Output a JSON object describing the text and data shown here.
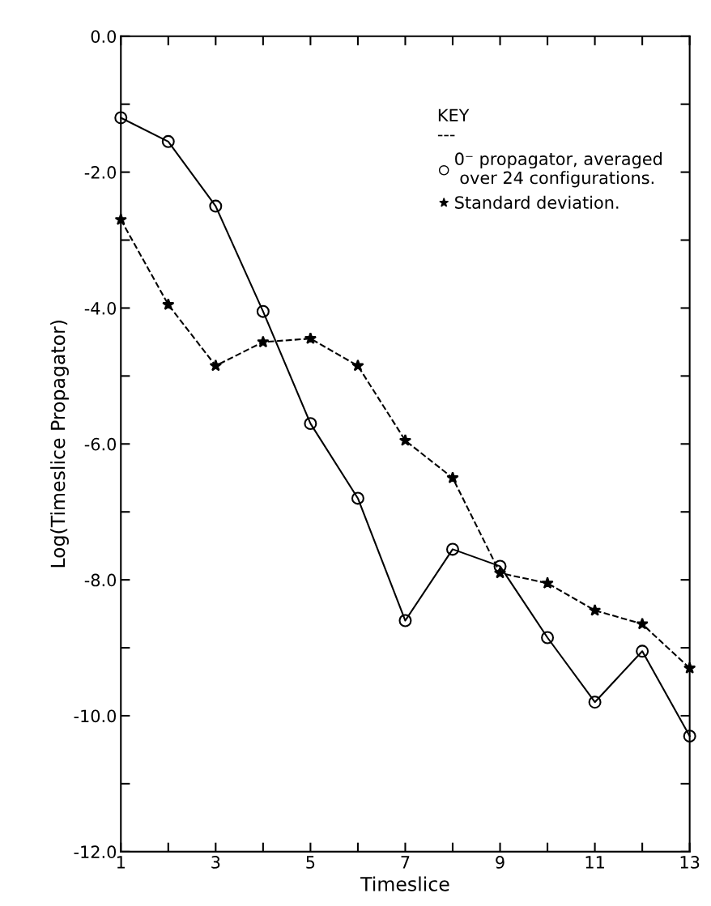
{
  "chart_data": {
    "type": "line",
    "xlabel": "Timeslice",
    "ylabel": "Log(Timeslice Propagator)",
    "x": [
      1,
      2,
      3,
      4,
      5,
      6,
      7,
      8,
      9,
      10,
      11,
      12,
      13
    ],
    "xlim": [
      1,
      13
    ],
    "xticks": [
      1,
      {
        "value": 2,
        "label": null
      },
      3,
      {
        "value": 4,
        "label": null
      },
      5,
      {
        "value": 6,
        "label": null
      },
      7,
      {
        "value": 8,
        "label": null
      },
      9,
      {
        "value": 10,
        "label": null
      },
      11,
      {
        "value": 12,
        "label": null
      },
      13
    ],
    "ylim": [
      -12,
      0
    ],
    "yticks": [
      {
        "value": -12,
        "label": "-12.0"
      },
      {
        "value": -11,
        "label": null
      },
      {
        "value": -10,
        "label": "-10.0"
      },
      {
        "value": -9,
        "label": null
      },
      {
        "value": -8,
        "label": "-8.0"
      },
      {
        "value": -7,
        "label": null
      },
      {
        "value": -6,
        "label": "-6.0"
      },
      {
        "value": -5,
        "label": null
      },
      {
        "value": -4,
        "label": "-4.0"
      },
      {
        "value": -3,
        "label": null
      },
      {
        "value": -2,
        "label": "-2.0"
      },
      {
        "value": -1,
        "label": null
      },
      {
        "value": 0,
        "label": "0.0"
      }
    ],
    "legend": "top right",
    "legend_title": "KEY\n---",
    "grid": false,
    "series": [
      {
        "name": "0⁻ propagator, averaged\n over 24 configurations.",
        "color": "#000000",
        "marker": "circle",
        "line_style": "solid",
        "values": [
          -1.2,
          -1.55,
          -2.5,
          -4.05,
          -5.7,
          -6.8,
          -8.6,
          -7.55,
          -7.8,
          -8.85,
          -9.8,
          -9.05,
          -10.3
        ]
      },
      {
        "name": "Standard deviation.",
        "color": "#000000",
        "marker": "star",
        "line_style": "dashed",
        "values": [
          -2.7,
          -3.95,
          -4.85,
          -4.5,
          -4.45,
          -4.85,
          -5.95,
          -6.5,
          -7.9,
          -8.05,
          -8.45,
          -8.65,
          -9.3
        ]
      }
    ]
  }
}
